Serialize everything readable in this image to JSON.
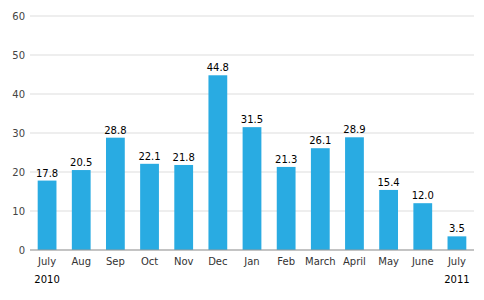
{
  "chart_data": {
    "type": "bar",
    "categories": [
      "July",
      "Aug",
      "Sep",
      "Oct",
      "Nov",
      "Dec",
      "Jan",
      "Feb",
      "March",
      "April",
      "May",
      "June",
      "July"
    ],
    "values": [
      17.8,
      20.5,
      28.8,
      22.1,
      21.8,
      44.8,
      31.5,
      21.3,
      26.1,
      28.9,
      15.4,
      12.0,
      3.5
    ],
    "value_labels": [
      "17.8",
      "20.5",
      "28.8",
      "22.1",
      "21.8",
      "44.8",
      "31.5",
      "21.3",
      "26.1",
      "28.9",
      "15.4",
      "12.0",
      "3.5"
    ],
    "color": "#29ABE2",
    "ylim": [
      0,
      60
    ],
    "yticks": [
      0,
      10,
      20,
      30,
      40,
      50,
      60
    ],
    "grid": true,
    "data_labels": true,
    "annotations": [
      {
        "label": "2010",
        "index": 0
      },
      {
        "label": "2011",
        "index": 12
      }
    ]
  }
}
